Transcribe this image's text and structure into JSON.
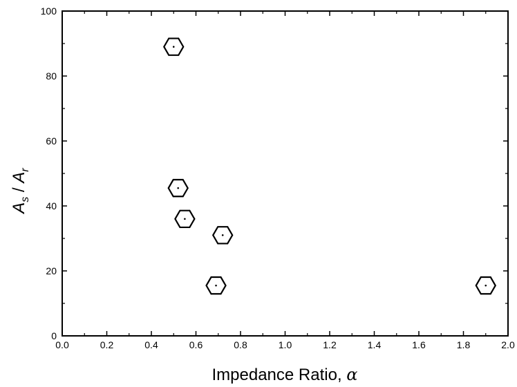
{
  "chart_data": {
    "type": "scatter",
    "xlabel_text": "Impedance Ratio, ",
    "xlabel_symbol": "α",
    "ylabel": {
      "base1": "A",
      "sub1": "s",
      "sep": " / ",
      "base2": "A",
      "sub2": "r"
    },
    "xlim": [
      0.0,
      2.0
    ],
    "ylim": [
      0,
      100
    ],
    "xticks": [
      0.0,
      0.2,
      0.4,
      0.6,
      0.8,
      1.0,
      1.2,
      1.4,
      1.6,
      1.8,
      2.0
    ],
    "xtick_labels": [
      "0.0",
      "0.2",
      "0.4",
      "0.6",
      "0.8",
      "1.0",
      "1.2",
      "1.4",
      "1.6",
      "1.8",
      "2.0"
    ],
    "yticks": [
      0,
      20,
      40,
      60,
      80,
      100
    ],
    "ytick_labels": [
      "0",
      "20",
      "40",
      "60",
      "80",
      "100"
    ],
    "marker": "hexagon",
    "grid": false,
    "points": [
      {
        "x": 0.5,
        "y": 89
      },
      {
        "x": 0.52,
        "y": 45.5
      },
      {
        "x": 0.55,
        "y": 36
      },
      {
        "x": 0.72,
        "y": 31
      },
      {
        "x": 0.69,
        "y": 15.5
      },
      {
        "x": 1.9,
        "y": 15.5
      }
    ]
  }
}
